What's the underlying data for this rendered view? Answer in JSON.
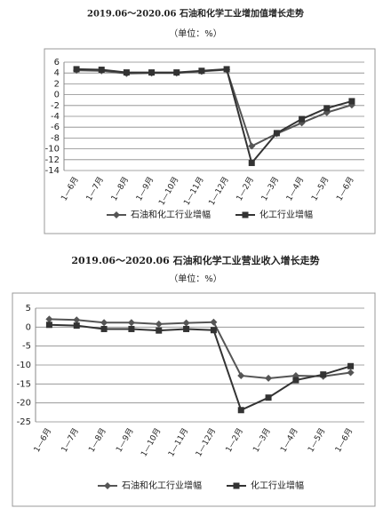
{
  "chart_data": [
    {
      "type": "line",
      "title": "2019.06～2020.06 石油和化学工业增加值增长走势",
      "subtitle": "（单位：%）",
      "categories": [
        "1—6月",
        "1—7月",
        "1—8月",
        "1—9月",
        "1—10月",
        "1—11月",
        "1—12月",
        "1—2月",
        "1—3月",
        "1—4月",
        "1—5月",
        "1—6月"
      ],
      "series": [
        {
          "name": "石油和化工行业增幅",
          "color": "#555555",
          "marker": "diamond",
          "values": [
            4.5,
            4.4,
            3.9,
            4.0,
            4.0,
            4.3,
            4.6,
            -9.5,
            -7.2,
            -5.2,
            -3.3,
            -1.9
          ]
        },
        {
          "name": "化工行业增幅",
          "color": "#333333",
          "marker": "square",
          "values": [
            4.7,
            4.6,
            4.1,
            4.1,
            4.1,
            4.4,
            4.7,
            -12.6,
            -7.1,
            -4.5,
            -2.5,
            -1.2
          ]
        }
      ],
      "ylim": [
        -14,
        6
      ],
      "yticks": [
        -14,
        -12,
        -10,
        -8,
        -6,
        -4,
        -2,
        0,
        2,
        4,
        6
      ],
      "grid": true
    },
    {
      "type": "line",
      "title": "2019.06～2020.06 石油和化学工业营业收入增长走势",
      "subtitle": "（单位：%）",
      "categories": [
        "1—6月",
        "1—7月",
        "1—8月",
        "1—9月",
        "1—10月",
        "1—11月",
        "1—12月",
        "1—2月",
        "1—3月",
        "1—4月",
        "1—5月",
        "1—6月"
      ],
      "series": [
        {
          "name": "石油和化工行业增幅",
          "color": "#555555",
          "marker": "diamond",
          "values": [
            2.1,
            1.9,
            1.2,
            1.2,
            0.8,
            1.1,
            1.3,
            -12.8,
            -13.5,
            -12.8,
            -13.0,
            -12.0
          ]
        },
        {
          "name": "化工行业增幅",
          "color": "#333333",
          "marker": "square",
          "values": [
            0.6,
            0.4,
            -0.5,
            -0.5,
            -0.9,
            -0.5,
            -0.8,
            -21.9,
            -18.6,
            -14.0,
            -12.5,
            -10.3
          ]
        }
      ],
      "ylim": [
        -25,
        5
      ],
      "yticks": [
        -25,
        -20,
        -15,
        -10,
        -5,
        0,
        5
      ],
      "grid": true
    }
  ]
}
